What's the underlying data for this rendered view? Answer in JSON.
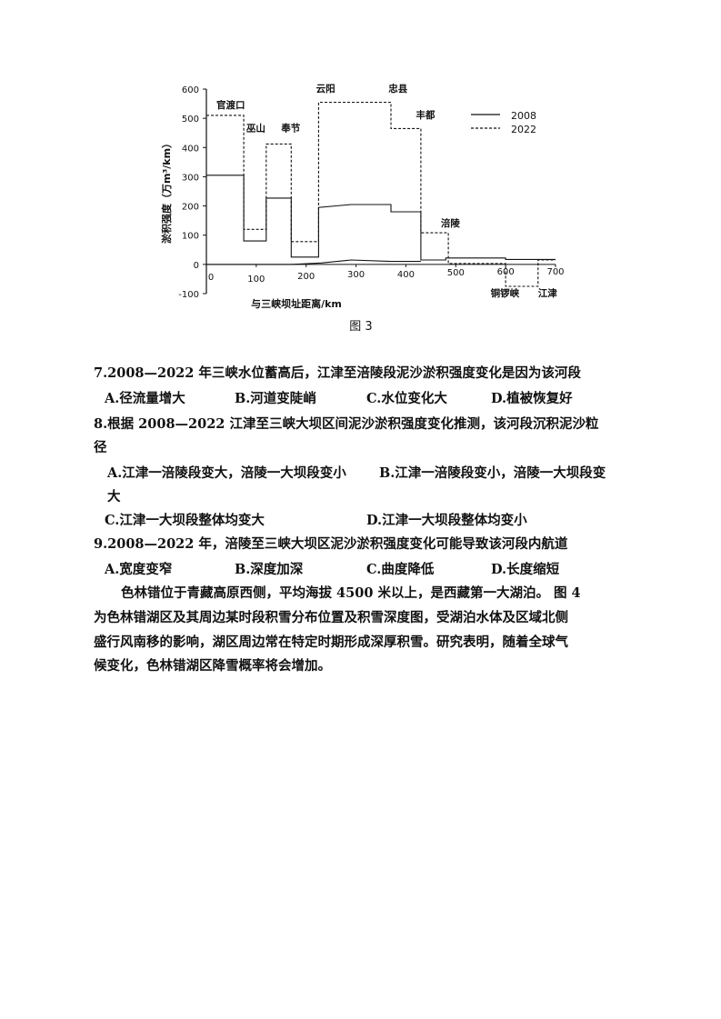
{
  "chart_data": {
    "type": "line",
    "title": "",
    "caption": "图 3",
    "xlabel": "与三峡坝址距离/km",
    "ylabel": "淤积强度（万m³/km）",
    "xlim": [
      0,
      700
    ],
    "ylim": [
      -100,
      600
    ],
    "xticks": [
      0,
      100,
      200,
      300,
      400,
      500,
      600,
      700
    ],
    "yticks": [
      -100,
      0,
      100,
      200,
      300,
      400,
      500,
      600
    ],
    "grid": false,
    "legend": "top-right",
    "series": [
      {
        "name": "2008",
        "style": "solid",
        "x": [
          0,
          75,
          75,
          120,
          120,
          170,
          170,
          225,
          225,
          290,
          370,
          370,
          430,
          430,
          480,
          480,
          600,
          600,
          700
        ],
        "y": [
          305,
          305,
          80,
          80,
          227,
          227,
          25,
          25,
          195,
          205,
          205,
          180,
          180,
          15,
          15,
          22,
          22,
          17,
          17
        ]
      },
      {
        "name": "2022",
        "style": "dashed",
        "x": [
          0,
          75,
          75,
          120,
          120,
          170,
          170,
          225,
          225,
          370,
          370,
          430,
          430,
          485,
          485,
          600,
          600,
          665,
          665,
          700
        ],
        "y": [
          510,
          510,
          120,
          120,
          412,
          412,
          78,
          78,
          555,
          555,
          465,
          465,
          108,
          108,
          3,
          3,
          -75,
          -75,
          15,
          15
        ]
      },
      {
        "style": "solid",
        "x": [
          0,
          170,
          230,
          290,
          370,
          430
        ],
        "y": [
          0,
          0,
          5,
          15,
          10,
          10
        ]
      }
    ],
    "annotations": [
      {
        "text": "官渡口",
        "x": 20,
        "y": 535
      },
      {
        "text": "巫山",
        "x": 80,
        "y": 455
      },
      {
        "text": "奉节",
        "x": 150,
        "y": 455
      },
      {
        "text": "云阳",
        "x": 220,
        "y": 590
      },
      {
        "text": "忠县",
        "x": 365,
        "y": 590
      },
      {
        "text": "丰都",
        "x": 420,
        "y": 500
      },
      {
        "text": "涪陵",
        "x": 470,
        "y": 130
      },
      {
        "text": "铜锣峡",
        "x": 570,
        "y": -110
      },
      {
        "text": "江津",
        "x": 665,
        "y": -110
      }
    ]
  },
  "questions": [
    {
      "stem": "7.2008—2022 年三峡水位蓄高后，江津至涪陵段泥沙淤积强度变化是因为该河段",
      "options": [
        "A.径流量增大",
        "B.河道变陡峭",
        "C.水位变化大",
        "D.植被恢复好"
      ]
    },
    {
      "stem": "8.根据 2008—2022 江津至三峡大坝区间泥沙淤积强度变化推测，该河段沉积泥沙粒",
      "stem2": "径",
      "options": [
        "A.江津一涪陵段变大，涪陵一大坝段变小",
        "B.江津一涪陵段变小，涪陵一大坝段变",
        "C.江津一大坝段整体均变大",
        "D.江津一大坝段整体均变小"
      ],
      "optB2": "大"
    },
    {
      "stem": "9.2008—2022 年，涪陵至三峡大坝区泥沙淤积强度变化可能导致该河段内航道",
      "options": [
        "A.宽度变窄",
        "B.深度加深",
        "C.曲度降低",
        "D.长度缩短"
      ]
    }
  ],
  "paragraph": [
    "色林错位于青藏高原西侧，平均海拔 4500 米以上，是西藏第一大湖泊。 图 4",
    "为色林错湖区及其周边某时段积雪分布位置及积雪深度图，受湖泊水体及区域北侧",
    "盛行风南移的影响，湖区周边常在特定时期形成深厚积雪。研究表明，随着全球气",
    "候变化，色林错湖区降雪概率将会增加。"
  ]
}
